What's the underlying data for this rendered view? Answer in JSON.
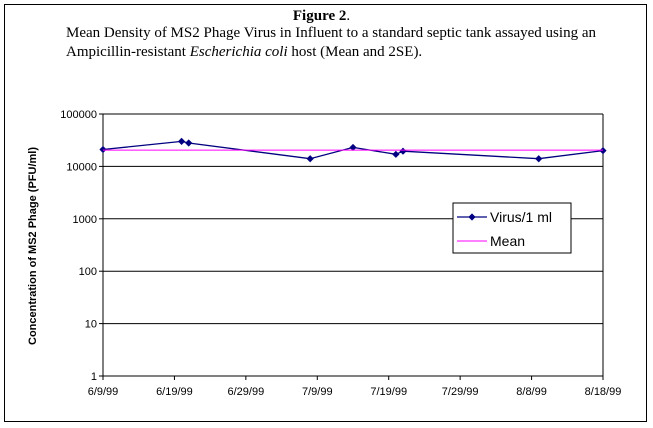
{
  "figure": {
    "label": "Figure 2",
    "label_suffix": ".",
    "caption_part1": "Mean Density of MS2 Phage Virus in Influent to a standard septic tank assayed using an Ampicillin-resistant ",
    "caption_italic": "Escherichia coli",
    "caption_part2": " host (Mean and 2SE)."
  },
  "chart_data": {
    "type": "line",
    "title": "",
    "xlabel": "",
    "ylabel": "Concentration of MS2 Phage (PFU/ml)",
    "y_scale": "log",
    "ylim": [
      1,
      100000
    ],
    "y_ticks": [
      1,
      10,
      100,
      1000,
      10000,
      100000
    ],
    "y_tick_labels": [
      "1",
      "10",
      "100",
      "1000",
      "10000",
      "100000"
    ],
    "xlim": [
      "1999-06-09",
      "1999-08-18"
    ],
    "x_tick_labels": [
      "6/9/99",
      "6/19/99",
      "6/29/99",
      "7/9/99",
      "7/19/99",
      "7/29/99",
      "8/8/99",
      "8/18/99"
    ],
    "x_ticks": [
      "1999-06-09",
      "1999-06-19",
      "1999-06-29",
      "1999-07-09",
      "1999-07-19",
      "1999-07-29",
      "1999-08-08",
      "1999-08-18"
    ],
    "grid": "horizontal",
    "legend_position": "right",
    "series": [
      {
        "name": "Virus/1 ml",
        "color": "#000080",
        "marker": "diamond",
        "x": [
          "1999-06-09",
          "1999-06-20",
          "1999-06-21",
          "1999-07-08",
          "1999-07-14",
          "1999-07-20",
          "1999-07-21",
          "1999-08-09",
          "1999-08-18"
        ],
        "y": [
          21000,
          30000,
          28000,
          14000,
          23000,
          17000,
          19500,
          14000,
          20000
        ]
      },
      {
        "name": "Mean",
        "color": "#ff00ff",
        "marker": "none",
        "x": [
          "1999-06-09",
          "1999-08-18"
        ],
        "y": [
          20500,
          20500
        ]
      }
    ]
  }
}
